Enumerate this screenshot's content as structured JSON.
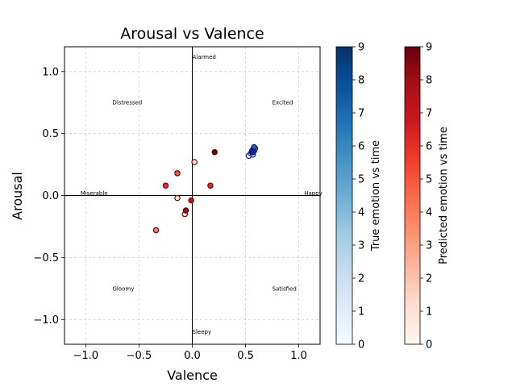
{
  "chart_data": {
    "type": "scatter",
    "title": "Arousal vs Valence",
    "xlabel": "Valence",
    "ylabel": "Arousal",
    "xlim": [
      -1.2,
      1.2
    ],
    "ylim": [
      -1.2,
      1.2
    ],
    "grid": true,
    "x_ticks": [
      "−1.0",
      "−0.5",
      "0.0",
      "0.5",
      "1.0"
    ],
    "y_ticks": [
      "−1.0",
      "−0.5",
      "0.0",
      "0.5",
      "1.0"
    ],
    "quadrant_labels": [
      {
        "text": "Alarmed",
        "x": 0.0,
        "y": 1.12
      },
      {
        "text": "Excited",
        "x": 0.75,
        "y": 0.75
      },
      {
        "text": "Distressed",
        "x": -0.75,
        "y": 0.75
      },
      {
        "text": "Miserable",
        "x": -1.05,
        "y": 0.02
      },
      {
        "text": "Happy",
        "x": 1.05,
        "y": 0.02
      },
      {
        "text": "Gloomy",
        "x": -0.75,
        "y": -0.75
      },
      {
        "text": "Satisfied",
        "x": 0.75,
        "y": -0.75
      },
      {
        "text": "Sleepy",
        "x": 0.0,
        "y": -1.1
      }
    ],
    "series": [
      {
        "name": "True emotion vs time",
        "colormap": "Blues",
        "points": [
          {
            "x": 0.53,
            "y": 0.32,
            "t": 0
          },
          {
            "x": 0.55,
            "y": 0.34,
            "t": 1
          },
          {
            "x": 0.57,
            "y": 0.33,
            "t": 2
          },
          {
            "x": 0.56,
            "y": 0.35,
            "t": 3
          },
          {
            "x": 0.58,
            "y": 0.36,
            "t": 4
          },
          {
            "x": 0.57,
            "y": 0.37,
            "t": 5
          },
          {
            "x": 0.59,
            "y": 0.38,
            "t": 6
          },
          {
            "x": 0.58,
            "y": 0.39,
            "t": 7
          },
          {
            "x": 0.56,
            "y": 0.36,
            "t": 8
          },
          {
            "x": 0.57,
            "y": 0.35,
            "t": 9
          }
        ]
      },
      {
        "name": "Predicted emotion vs time",
        "colormap": "Reds",
        "points": [
          {
            "x": 0.02,
            "y": 0.27,
            "t": 1
          },
          {
            "x": -0.14,
            "y": -0.02,
            "t": 1
          },
          {
            "x": -0.07,
            "y": -0.15,
            "t": 1
          },
          {
            "x": -0.34,
            "y": -0.28,
            "t": 4
          },
          {
            "x": -0.14,
            "y": 0.18,
            "t": 5
          },
          {
            "x": -0.25,
            "y": 0.08,
            "t": 6
          },
          {
            "x": 0.17,
            "y": 0.08,
            "t": 6
          },
          {
            "x": -0.01,
            "y": -0.04,
            "t": 7
          },
          {
            "x": -0.06,
            "y": -0.12,
            "t": 8
          },
          {
            "x": 0.21,
            "y": 0.35,
            "t": 9
          }
        ]
      }
    ],
    "colorbars": [
      {
        "label": "True emotion vs time",
        "colormap": "Blues",
        "range": [
          0,
          9
        ],
        "ticks": [
          "0",
          "1",
          "2",
          "3",
          "4",
          "5",
          "6",
          "7",
          "8",
          "9"
        ]
      },
      {
        "label": "Predicted emotion vs time",
        "colormap": "Reds",
        "range": [
          0,
          9
        ],
        "ticks": [
          "0",
          "1",
          "2",
          "3",
          "4",
          "5",
          "6",
          "7",
          "8",
          "9"
        ]
      }
    ]
  }
}
